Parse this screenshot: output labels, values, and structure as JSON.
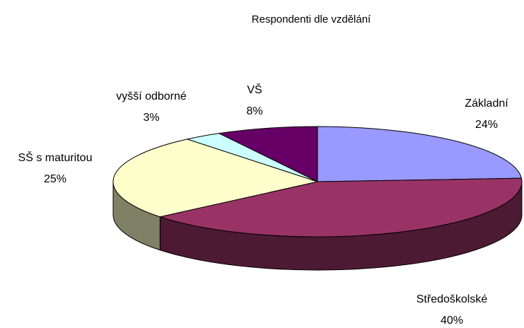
{
  "chart_data": {
    "type": "pie",
    "title": "Respondenti dle vzdělání",
    "categories": [
      "Základní",
      "Středoškolské",
      "SŠ s maturitou",
      "vyšší odborné",
      "VŠ"
    ],
    "values": [
      24,
      40,
      25,
      3,
      8
    ],
    "value_labels": [
      "24%",
      "40%",
      "25%",
      "3%",
      "8%"
    ],
    "colors": [
      "#9999ff",
      "#993366",
      "#ffffcc",
      "#ccffff",
      "#660066"
    ]
  }
}
